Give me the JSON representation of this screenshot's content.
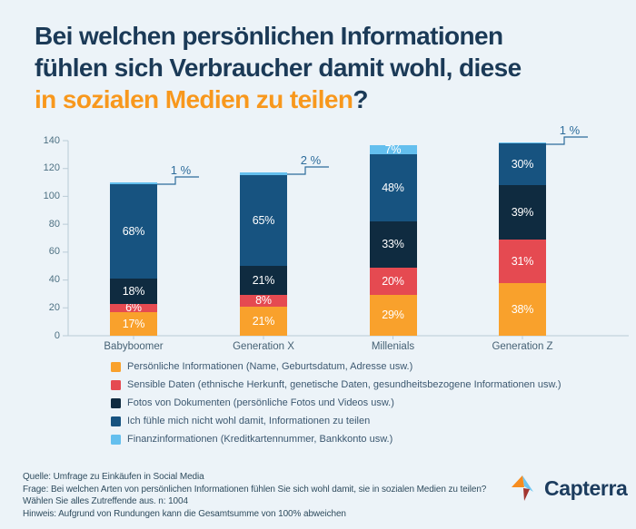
{
  "title": {
    "line1": "Bei welchen persönlichen Informationen",
    "line2": "fühlen sich Verbraucher damit wohl, diese",
    "highlight": "in sozialen Medien zu teilen",
    "question_mark": "?"
  },
  "colors": {
    "background": "#ECF3F8",
    "title_navy": "#1B3A57",
    "title_orange": "#F8981D",
    "orange": "#F9A12C",
    "red": "#E54A51",
    "dark_navy": "#0F2B40",
    "blue": "#175380",
    "light_blue": "#64BFEE",
    "axis_line": "#B9CBD6",
    "axis_text": "#4E7183",
    "callout": "#2D6C9B",
    "legend_text": "#3C5870",
    "footer_text": "#2F4C5E",
    "logo_navy": "#1C3C5E",
    "logo_light_blue": "#6FC5F0",
    "logo_orange": "#F68C1F",
    "logo_dark_red": "#A23530"
  },
  "chart_data": {
    "type": "bar",
    "subtype": "stacked",
    "categories": [
      "Babyboomer",
      "Generation X",
      "Millenials",
      "Generation Z"
    ],
    "unit": "%",
    "ylim": [
      0,
      140
    ],
    "yticks": [
      0,
      20,
      40,
      60,
      80,
      100,
      120,
      140
    ],
    "grid": false,
    "legend_position": "bottom",
    "series": [
      {
        "name": "Persönliche Informationen (Name, Geburtsdatum, Adresse usw.)",
        "color_key": "orange",
        "values": [
          17,
          21,
          29,
          38
        ]
      },
      {
        "name": "Sensible Daten (ethnische Herkunft, genetische Daten, gesundheitsbezogene Informationen usw.)",
        "color_key": "red",
        "values": [
          6,
          8,
          20,
          31
        ]
      },
      {
        "name": "Fotos von Dokumenten (persönliche Fotos und Videos usw.)",
        "color_key": "dark_navy",
        "values": [
          18,
          21,
          33,
          39
        ]
      },
      {
        "name": "Ich fühle mich nicht wohl damit, Informationen zu teilen",
        "color_key": "blue",
        "values": [
          68,
          65,
          48,
          30
        ]
      },
      {
        "name": "Finanzinformationen (Kreditkartennummer, Bankkonto usw.)",
        "color_key": "light_blue",
        "values": [
          1,
          2,
          7,
          1
        ]
      }
    ],
    "callouts": [
      {
        "category": "Babyboomer",
        "label": "1 %"
      },
      {
        "category": "Generation X",
        "label": "2 %"
      },
      {
        "category": "Generation Z",
        "label": "1 %"
      }
    ]
  },
  "footer": {
    "lines": [
      "Quelle: Umfrage zu Einkäufen in Social Media",
      "Frage: Bei welchen Arten von persönlichen Informationen fühlen Sie sich wohl damit, sie in sozialen Medien zu teilen?",
      "Wählen Sie alles Zutreffende aus. n: 1004",
      "Hinweis: Aufgrund von Rundungen kann die Gesamtsumme von 100% abweichen"
    ],
    "brand": "Capterra"
  }
}
